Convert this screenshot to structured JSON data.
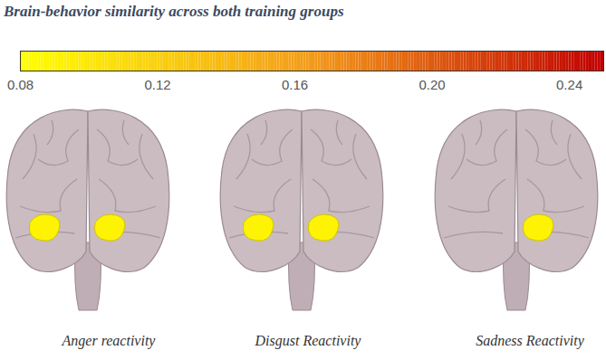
{
  "chart_data": {
    "type": "brain_map",
    "title": "Brain-behavior similarity across both training groups",
    "color_scale": {
      "range": [
        0.08,
        0.25
      ],
      "ticks": [
        0.08,
        0.12,
        0.16,
        {
          "value": 0.2,
          "label": "0.20"
        },
        0.24
      ],
      "colors": [
        "#ffff00",
        "#f39a1a",
        "#c00000"
      ]
    },
    "panels": [
      {
        "label": "Anger reactivity",
        "regions": [
          {
            "position": "left",
            "value": 0.09
          },
          {
            "position": "right",
            "value": 0.09
          }
        ]
      },
      {
        "label": "Disgust Reactivity",
        "regions": [
          {
            "position": "left",
            "value": 0.09
          },
          {
            "position": "right",
            "value": 0.09
          }
        ]
      },
      {
        "label": "Sadness Reactivity",
        "regions": [
          {
            "position": "right",
            "value": 0.09
          }
        ]
      }
    ]
  }
}
